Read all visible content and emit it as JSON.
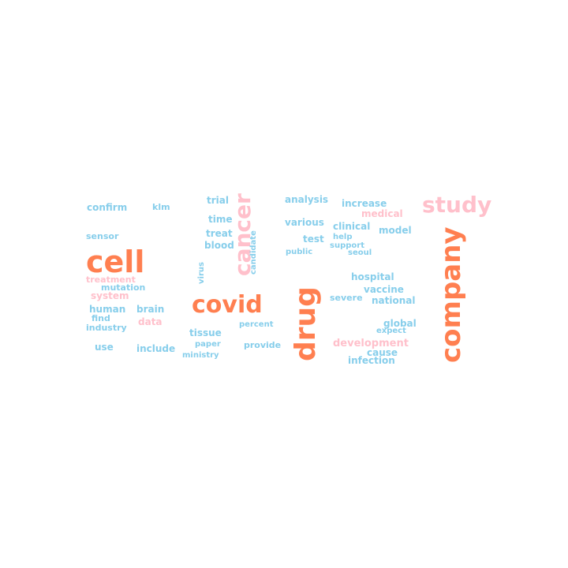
{
  "colors": {
    "orange": "#ff7f50",
    "pink": "#ffc0cb",
    "blue": "#87ceeb"
  },
  "words": [
    {
      "text": "confirm",
      "color": "blue"
    },
    {
      "text": "klm",
      "color": "blue"
    },
    {
      "text": "trial",
      "color": "blue"
    },
    {
      "text": "analysis",
      "color": "blue"
    },
    {
      "text": "increase",
      "color": "blue"
    },
    {
      "text": "study",
      "color": "pink"
    },
    {
      "text": "medical",
      "color": "pink"
    },
    {
      "text": "time",
      "color": "blue"
    },
    {
      "text": "various",
      "color": "blue"
    },
    {
      "text": "clinical",
      "color": "blue"
    },
    {
      "text": "model",
      "color": "blue"
    },
    {
      "text": "treat",
      "color": "blue"
    },
    {
      "text": "sensor",
      "color": "blue"
    },
    {
      "text": "test",
      "color": "blue"
    },
    {
      "text": "help",
      "color": "blue"
    },
    {
      "text": "blood",
      "color": "blue"
    },
    {
      "text": "support",
      "color": "blue"
    },
    {
      "text": "public",
      "color": "blue"
    },
    {
      "text": "seoul",
      "color": "blue"
    },
    {
      "text": "cell",
      "color": "orange"
    },
    {
      "text": "cancer",
      "color": "pink"
    },
    {
      "text": "candidate",
      "color": "blue"
    },
    {
      "text": "virus",
      "color": "blue"
    },
    {
      "text": "hospital",
      "color": "blue"
    },
    {
      "text": "treatment",
      "color": "pink"
    },
    {
      "text": "mutation",
      "color": "blue"
    },
    {
      "text": "vaccine",
      "color": "blue"
    },
    {
      "text": "system",
      "color": "pink"
    },
    {
      "text": "severe",
      "color": "blue"
    },
    {
      "text": "national",
      "color": "blue"
    },
    {
      "text": "drug",
      "color": "orange"
    },
    {
      "text": "company",
      "color": "orange"
    },
    {
      "text": "covid",
      "color": "orange"
    },
    {
      "text": "human",
      "color": "blue"
    },
    {
      "text": "brain",
      "color": "blue"
    },
    {
      "text": "find",
      "color": "blue"
    },
    {
      "text": "data",
      "color": "pink"
    },
    {
      "text": "industry",
      "color": "blue"
    },
    {
      "text": "percent",
      "color": "blue"
    },
    {
      "text": "global",
      "color": "blue"
    },
    {
      "text": "tissue",
      "color": "blue"
    },
    {
      "text": "expect",
      "color": "blue"
    },
    {
      "text": "development",
      "color": "pink"
    },
    {
      "text": "use",
      "color": "blue"
    },
    {
      "text": "include",
      "color": "blue"
    },
    {
      "text": "paper",
      "color": "blue"
    },
    {
      "text": "provide",
      "color": "blue"
    },
    {
      "text": "cause",
      "color": "blue"
    },
    {
      "text": "ministry",
      "color": "blue"
    },
    {
      "text": "infection",
      "color": "blue"
    }
  ]
}
